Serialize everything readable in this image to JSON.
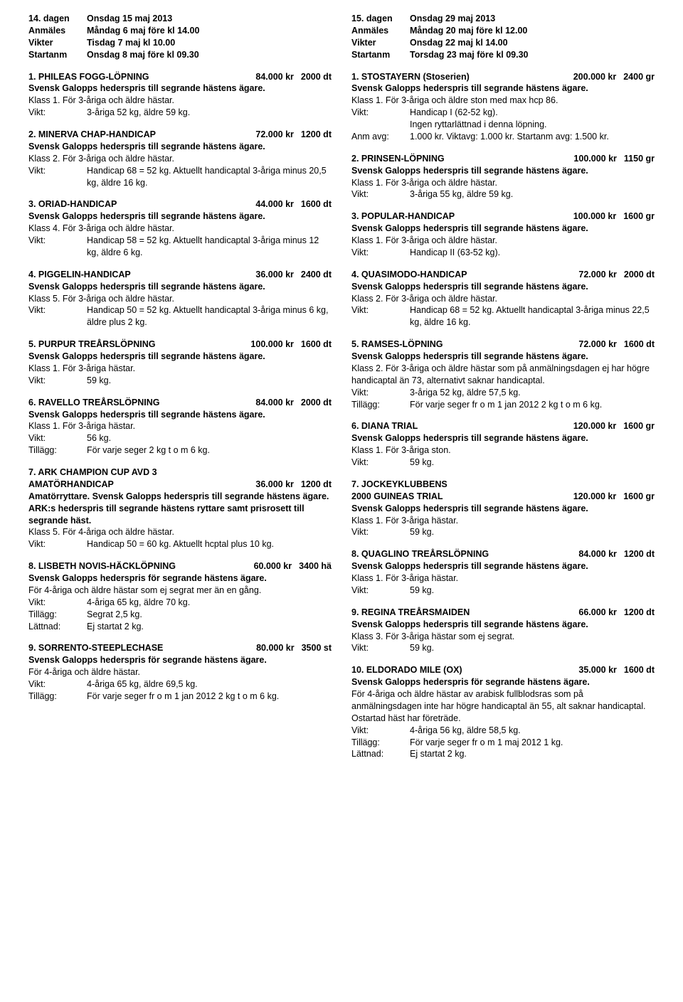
{
  "days": [
    {
      "header": [
        {
          "label": "14. dagen",
          "value": "Onsdag 15 maj 2013"
        },
        {
          "label": "Anmäles",
          "value": "Måndag 6 maj före kl 14.00"
        },
        {
          "label": "Vikter",
          "value": "Tisdag 7 maj kl 10.00"
        },
        {
          "label": "Startanm",
          "value": "Onsdag 8 maj före kl 09.30"
        }
      ],
      "races": [
        {
          "title": "1. PHILEAS FOGG-LÖPNING",
          "prize": "84.000 kr",
          "dist": "2000 dt",
          "prizeText": "Svensk Galopps hederspris till segrande hästens ägare.",
          "klass": "Klass 1. För 3-åriga och äldre hästar.",
          "details": [
            {
              "key": "Vikt:",
              "val": "3-åriga 52 kg, äldre 59 kg."
            }
          ]
        },
        {
          "title": "2. MINERVA CHAP-HANDICAP",
          "prize": "72.000 kr",
          "dist": "1200 dt",
          "prizeText": "Svensk Galopps hederspris till segrande hästens ägare.",
          "klass": "Klass 2. För 3-åriga och äldre hästar.",
          "details": [
            {
              "key": "Vikt:",
              "val": "Handicap 68 = 52 kg. Aktuellt handicaptal 3-åriga minus 20,5 kg, äldre 16 kg."
            }
          ]
        },
        {
          "title": "3. ORIAD-HANDICAP",
          "prize": "44.000 kr",
          "dist": "1600 dt",
          "prizeText": "Svensk Galopps hederspris till segrande hästens ägare.",
          "klass": "Klass 4. För 3-åriga och äldre hästar.",
          "details": [
            {
              "key": "Vikt:",
              "val": "Handicap 58 = 52 kg. Aktuellt handicaptal 3-åriga minus 12 kg, äldre 6 kg."
            }
          ]
        },
        {
          "title": "4. PIGGELIN-HANDICAP",
          "prize": "36.000 kr",
          "dist": "2400 dt",
          "prizeText": "Svensk Galopps hederspris till segrande hästens ägare.",
          "klass": "Klass 5. För 3-åriga och äldre hästar.",
          "details": [
            {
              "key": "Vikt:",
              "val": "Handicap 50 = 52 kg. Aktuellt handicaptal 3-åriga minus 6 kg, äldre plus 2 kg."
            }
          ]
        },
        {
          "title": "5. PURPUR TREÅRSLÖPNING",
          "prize": "100.000 kr",
          "dist": "1600 dt",
          "prizeText": "Svensk Galopps hederspris till segrande hästens ägare.",
          "klass": "Klass 1. För 3-åriga hästar.",
          "details": [
            {
              "key": "Vikt:",
              "val": "59 kg."
            }
          ]
        },
        {
          "title": "6. RAVELLO TREÅRSLÖPNING",
          "prize": "84.000 kr",
          "dist": "2000 dt",
          "prizeText": "Svensk Galopps hederspris till segrande hästens ägare.",
          "klass": "Klass 1. För 3-åriga hästar.",
          "details": [
            {
              "key": "Vikt:",
              "val": "56 kg."
            },
            {
              "key": "Tillägg:",
              "val": "För varje seger 2 kg t o m 6 kg."
            }
          ]
        },
        {
          "title": "7. ARK CHAMPION CUP AVD 3",
          "title2": "AMATÖRHANDICAP",
          "prize": "36.000 kr",
          "dist": "1200 dt",
          "prizeText": "Amatörryttare. Svensk Galopps hederspris till segrande hästens ägare. ARK:s hederspris till segrande hästens ryttare samt prisrosett till segrande häst.",
          "klass": "Klass 5. För 4-åriga och äldre hästar.",
          "details": [
            {
              "key": "Vikt:",
              "val": "Handicap 50 = 60 kg. Aktuellt hcptal plus 10 kg."
            }
          ]
        },
        {
          "title": "8. LISBETH NOVIS-HÄCKLÖPNING",
          "prize": "60.000 kr",
          "dist": "3400 hä",
          "prizeText": "Svensk Galopps hederspris för segrande hästens ägare.",
          "klass": "För 4-åriga och äldre hästar som ej segrat mer än en gång.",
          "details": [
            {
              "key": "Vikt:",
              "val": "4-åriga 65 kg, äldre 70 kg."
            },
            {
              "key": "Tillägg:",
              "val": "Segrat 2,5 kg."
            },
            {
              "key": "Lättnad:",
              "val": "Ej startat 2 kg."
            }
          ]
        },
        {
          "title": "9. SORRENTO-STEEPLECHASE",
          "prize": "80.000 kr",
          "dist": "3500 st",
          "prizeText": "Svensk Galopps hederspris för segrande hästens ägare.",
          "klass": "För 4-åriga och äldre hästar.",
          "details": [
            {
              "key": "Vikt:",
              "val": "4-åriga 65 kg, äldre 69,5 kg."
            },
            {
              "key": "Tillägg:",
              "val": "För varje seger fr o m 1 jan 2012 2 kg t o m 6 kg."
            }
          ]
        }
      ]
    },
    {
      "header": [
        {
          "label": "15. dagen",
          "value": "Onsdag 29 maj 2013"
        },
        {
          "label": "Anmäles",
          "value": "Måndag 20 maj före kl 12.00"
        },
        {
          "label": "Vikter",
          "value": "Onsdag 22 maj kl 14.00"
        },
        {
          "label": "Startanm",
          "value": "Torsdag 23 maj före kl 09.30"
        }
      ],
      "races": [
        {
          "title": "1. STOSTAYERN (Stoserien)",
          "prize": "200.000 kr",
          "dist": "2400 gr",
          "prizeText": "Svensk Galopps hederspris till segrande hästens ägare.",
          "klass": "Klass 1. För 3-åriga och äldre ston med max hcp 86.",
          "details": [
            {
              "key": "Vikt:",
              "val": "Handicap I (62-52 kg)."
            },
            {
              "key": "",
              "val": "Ingen ryttarlättnad i denna löpning."
            },
            {
              "key": "Anm avg:",
              "val": "1.000 kr. Viktavg: 1.000 kr. Startanm avg: 1.500 kr."
            }
          ]
        },
        {
          "title": "2. PRINSEN-LÖPNING",
          "prize": "100.000 kr",
          "dist": "1150 gr",
          "prizeText": "Svensk Galopps hederspris till segrande hästens ägare.",
          "klass": "Klass 1. För 3-åriga och äldre hästar.",
          "details": [
            {
              "key": "Vikt:",
              "val": "3-åriga 55 kg, äldre 59 kg."
            }
          ]
        },
        {
          "title": "3. POPULAR-HANDICAP",
          "prize": "100.000 kr",
          "dist": "1600 gr",
          "prizeText": "Svensk Galopps hederspris till segrande hästens ägare.",
          "klass": "Klass 1. För 3-åriga och äldre hästar.",
          "details": [
            {
              "key": "Vikt:",
              "val": "Handicap II (63-52 kg)."
            }
          ]
        },
        {
          "title": "4. QUASIMODO-HANDICAP",
          "prize": "72.000 kr",
          "dist": "2000 dt",
          "prizeText": "Svensk Galopps hederspris till segrande hästens ägare.",
          "klass": "Klass 2. För 3-åriga och äldre hästar.",
          "details": [
            {
              "key": "Vikt:",
              "val": "Handicap 68 = 52 kg. Aktuellt handicaptal 3-åriga minus 22,5 kg, äldre 16 kg."
            }
          ]
        },
        {
          "title": "5. RAMSES-LÖPNING",
          "prize": "72.000 kr",
          "dist": "1600 dt",
          "prizeText": "Svensk Galopps hederspris till segrande hästens ägare.",
          "klass": "Klass 2. För 3-åriga och äldre hästar som på anmälningsdagen ej har högre handicaptal än 73, alternativt saknar handicaptal.",
          "details": [
            {
              "key": "Vikt:",
              "val": "3-åriga 52 kg, äldre 57,5 kg."
            },
            {
              "key": "Tillägg:",
              "val": "För varje seger fr o m 1 jan 2012 2 kg t o m 6 kg."
            }
          ]
        },
        {
          "title": "6. DIANA TRIAL",
          "prize": "120.000 kr",
          "dist": "1600 gr",
          "prizeText": "Svensk Galopps hederspris till segrande hästens ägare.",
          "klass": "Klass 1. För 3-åriga ston.",
          "details": [
            {
              "key": "Vikt:",
              "val": "59 kg."
            }
          ]
        },
        {
          "title": "7. JOCKEYKLUBBENS",
          "title2": "2000 GUINEAS TRIAL",
          "prize": "120.000 kr",
          "dist": "1600 gr",
          "prizeText": "Svensk Galopps hederspris till segrande hästens ägare.",
          "klass": "Klass 1. För 3-åriga hästar.",
          "details": [
            {
              "key": "Vikt:",
              "val": "59 kg."
            }
          ]
        },
        {
          "title": "8. QUAGLINO TREÅRSLÖPNING",
          "prize": "84.000 kr",
          "dist": "1200 dt",
          "prizeText": "Svensk Galopps hederspris till segrande hästens ägare.",
          "klass": "Klass 1. För 3-åriga hästar.",
          "details": [
            {
              "key": "Vikt:",
              "val": "59 kg."
            }
          ]
        },
        {
          "title": "9. REGINA TREÅRSMAIDEN",
          "prize": "66.000 kr",
          "dist": "1200 dt",
          "prizeText": "Svensk Galopps hederspris till segrande hästens ägare.",
          "klass": "Klass 3. För 3-åriga hästar som ej segrat.",
          "details": [
            {
              "key": "Vikt:",
              "val": "59 kg."
            }
          ]
        },
        {
          "title": "10. ELDORADO MILE (OX)",
          "prize": "35.000 kr",
          "dist": "1600 dt",
          "prizeText": "Svensk Galopps hederspris för segrande hästens ägare.",
          "klass": "För 4-åriga och äldre hästar av arabisk fullblodsras som på anmälningsdagen inte har högre handicaptal än 55, alt saknar handicaptal. Ostartad häst har företräde.",
          "details": [
            {
              "key": "Vikt:",
              "val": "4-åriga 56 kg, äldre 58,5 kg."
            },
            {
              "key": "Tillägg:",
              "val": "För varje seger fr o m 1 maj 2012 1 kg."
            },
            {
              "key": "Lättnad:",
              "val": "Ej startat 2 kg."
            }
          ]
        }
      ]
    }
  ]
}
